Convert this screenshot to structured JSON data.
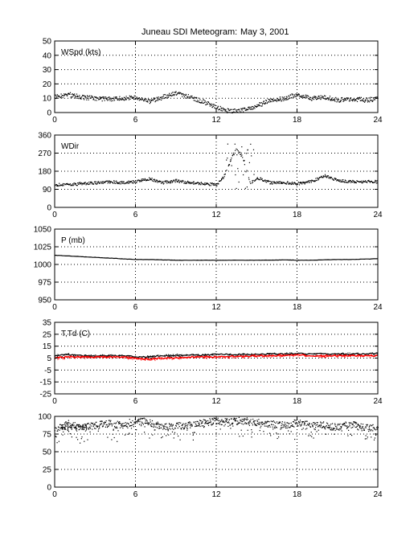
{
  "figure": {
    "title_station": "Juneau SDI Meteogram:",
    "title_date": "May  3, 2001"
  },
  "chart_data": [
    {
      "type": "scatter",
      "label": "WSpd (kts)",
      "xlim": [
        0,
        24
      ],
      "ylim": [
        0,
        50
      ],
      "x_ticks": [
        0,
        6,
        12,
        18,
        24
      ],
      "y_ticks": [
        0,
        10,
        20,
        30,
        40,
        50
      ],
      "grid": true,
      "series": [
        {
          "color": "#000000",
          "x": [
            0,
            1,
            2,
            3,
            4,
            5,
            6,
            7,
            8,
            9,
            10,
            11,
            12,
            13,
            14,
            15,
            16,
            17,
            18,
            19,
            20,
            21,
            22,
            23,
            24
          ],
          "y": [
            11,
            13,
            11,
            10,
            10,
            10,
            11,
            8,
            11,
            14,
            11,
            8,
            4,
            1,
            2,
            5,
            9,
            10,
            13,
            10,
            11,
            9,
            10,
            9,
            10
          ]
        }
      ]
    },
    {
      "type": "scatter",
      "label": "WDir",
      "xlim": [
        0,
        24
      ],
      "ylim": [
        0,
        360
      ],
      "x_ticks": [
        0,
        6,
        12,
        18,
        24
      ],
      "y_ticks": [
        0,
        90,
        180,
        270,
        360
      ],
      "grid": true,
      "series": [
        {
          "color": "#000000",
          "x": [
            0,
            1,
            2,
            3,
            4,
            5,
            6,
            7,
            8,
            9,
            10,
            11,
            12,
            12.5,
            13,
            13.5,
            14,
            14.5,
            15,
            16,
            17,
            18,
            19,
            20,
            21,
            22,
            23,
            24
          ],
          "y": [
            115,
            115,
            120,
            125,
            130,
            125,
            130,
            145,
            125,
            135,
            125,
            120,
            115,
            150,
            230,
            300,
            240,
            120,
            150,
            125,
            125,
            120,
            130,
            160,
            135,
            130,
            130,
            130
          ]
        }
      ]
    },
    {
      "type": "line",
      "label": "P (mb)",
      "xlim": [
        0,
        24
      ],
      "ylim": [
        950,
        1050
      ],
      "x_ticks": [
        0,
        6,
        12,
        18,
        24
      ],
      "y_ticks": [
        950,
        975,
        1000,
        1025,
        1050
      ],
      "grid": true,
      "series": [
        {
          "color": "#000000",
          "x": [
            0,
            1,
            2,
            3,
            4,
            5,
            6,
            7,
            8,
            9,
            10,
            11,
            12,
            13,
            14,
            15,
            16,
            17,
            18,
            19,
            20,
            21,
            22,
            23,
            24
          ],
          "y": [
            1013,
            1012,
            1011,
            1010,
            1009,
            1008,
            1007,
            1007,
            1006.5,
            1006,
            1006,
            1006,
            1006,
            1006,
            1006,
            1006,
            1006,
            1006.5,
            1006,
            1006,
            1006.5,
            1007,
            1007,
            1007.5,
            1008
          ]
        }
      ]
    },
    {
      "type": "line",
      "label": "T,Td (C)",
      "xlim": [
        0,
        24
      ],
      "ylim": [
        -25,
        35
      ],
      "x_ticks": [
        0,
        6,
        12,
        18,
        24
      ],
      "y_ticks": [
        -25,
        -15,
        -5,
        5,
        15,
        25,
        35
      ],
      "grid": true,
      "series": [
        {
          "color": "#000000",
          "x": [
            0,
            1,
            2,
            3,
            4,
            5,
            6,
            7,
            8,
            9,
            10,
            11,
            12,
            13,
            14,
            15,
            16,
            17,
            18,
            19,
            20,
            21,
            22,
            23,
            24
          ],
          "y": [
            7,
            8,
            7,
            7,
            7,
            7,
            6,
            6,
            7,
            7.5,
            7.5,
            7.5,
            8,
            8,
            8,
            8,
            8.5,
            8.5,
            9,
            8.5,
            8.5,
            8.5,
            8.5,
            8.5,
            9
          ]
        },
        {
          "color": "#ff0000",
          "x": [
            0,
            1,
            2,
            3,
            4,
            5,
            6,
            7,
            8,
            9,
            10,
            11,
            12,
            13,
            14,
            15,
            16,
            17,
            18,
            19,
            20,
            21,
            22,
            23,
            24
          ],
          "y": [
            5,
            6,
            6,
            6,
            6,
            6,
            5,
            4,
            5,
            5,
            6,
            6,
            6,
            6.5,
            6.5,
            7,
            7,
            7.5,
            7.5,
            7,
            7,
            7,
            7,
            7,
            7
          ]
        }
      ]
    },
    {
      "type": "scatter",
      "label": "RH (%)",
      "xlim": [
        0,
        24
      ],
      "ylim": [
        0,
        100
      ],
      "x_ticks": [
        0,
        6,
        12,
        18,
        24
      ],
      "y_ticks": [
        0,
        25,
        50,
        75,
        100
      ],
      "grid": true,
      "series": [
        {
          "color": "#000000",
          "x": [
            0,
            1,
            2,
            3,
            4,
            5,
            6,
            7,
            8,
            9,
            10,
            11,
            12,
            13,
            14,
            15,
            16,
            17,
            18,
            19,
            20,
            21,
            22,
            23,
            24
          ],
          "y": [
            82,
            90,
            85,
            88,
            90,
            88,
            95,
            92,
            85,
            87,
            88,
            92,
            94,
            93,
            95,
            92,
            90,
            88,
            92,
            90,
            88,
            85,
            90,
            84,
            86
          ]
        }
      ]
    }
  ]
}
